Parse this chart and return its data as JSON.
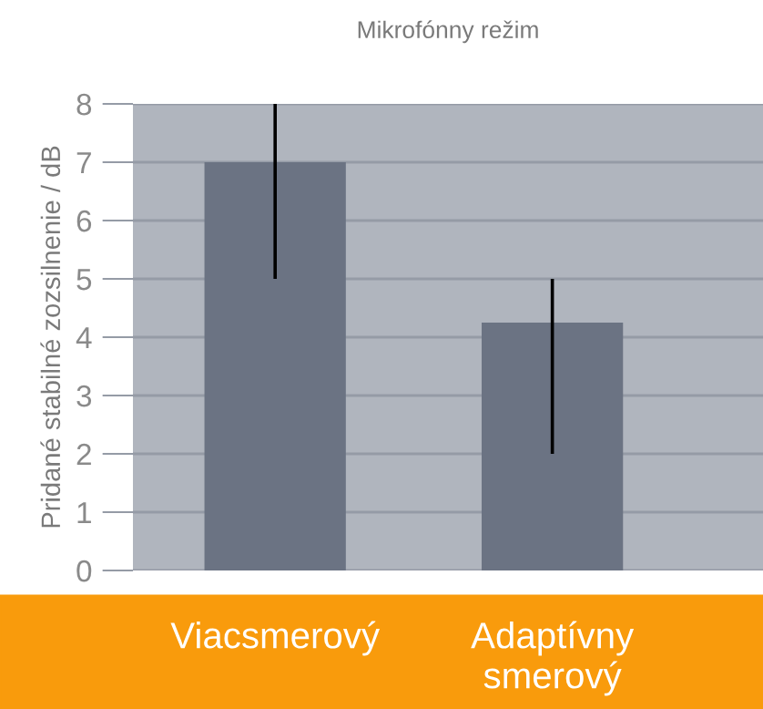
{
  "chart_data": {
    "type": "bar",
    "title": "Mikrofónny režim",
    "ylabel": "Pridané stabilné zozsilnenie / dB",
    "categories": [
      "Viacsmerový",
      "Adaptívny smerový"
    ],
    "values": [
      7,
      4.25
    ],
    "errors": [
      [
        5,
        8
      ],
      [
        2,
        5
      ]
    ],
    "color": "#6b7383",
    "ylim": [
      0,
      8
    ],
    "yticks": [
      0,
      1,
      2,
      3,
      4,
      5,
      6,
      7,
      8
    ],
    "grid": "y",
    "legend": false
  }
}
